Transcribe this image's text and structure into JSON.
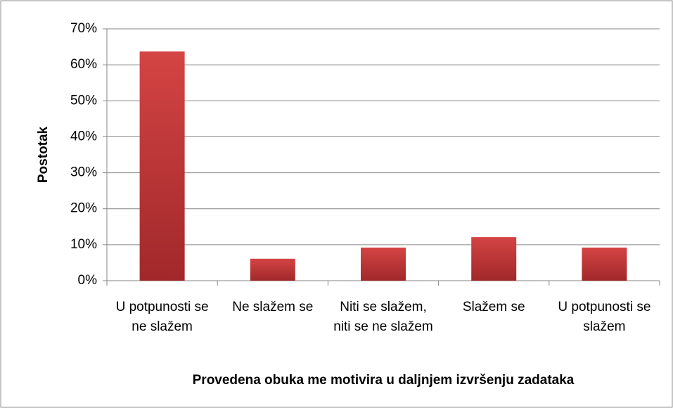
{
  "chart_data": {
    "type": "bar",
    "x_label": "Provedena obuka me motivira u daljnjem izvršenju zadataka",
    "y_label": "Postotak",
    "categories": [
      "U potpunosti se ne slažem",
      "Ne slažem se",
      "Niti se slažem, niti se ne slažem",
      "Slažem se",
      "U potpunosti se slažem"
    ],
    "values": [
      63.7,
      6.1,
      9.2,
      12.1,
      9.2
    ],
    "color": "#c0393b",
    "ylim": [
      0,
      70
    ],
    "yticks": [
      {
        "value": 0,
        "label": "0%"
      },
      {
        "value": 10,
        "label": "10%"
      },
      {
        "value": 20,
        "label": "20%"
      },
      {
        "value": 30,
        "label": "30%"
      },
      {
        "value": 40,
        "label": "40%"
      },
      {
        "value": 50,
        "label": "50%"
      },
      {
        "value": 60,
        "label": "60%"
      },
      {
        "value": 70,
        "label": "70%"
      }
    ],
    "grid": true
  }
}
